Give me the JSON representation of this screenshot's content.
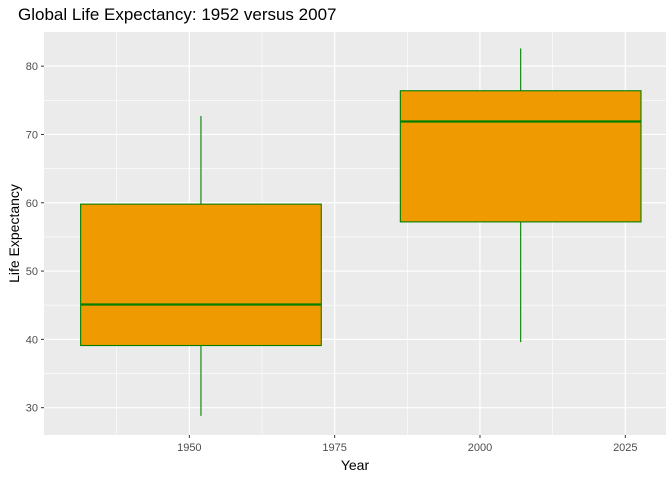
{
  "chart_data": {
    "type": "boxplot",
    "title": "Global Life Expectancy: 1952 versus 2007",
    "xlabel": "Year",
    "ylabel": "Life Expectancy",
    "xlim": [
      1925,
      2032
    ],
    "ylim": [
      26,
      85
    ],
    "x_ticks": [
      1950,
      1975,
      2000,
      2025
    ],
    "y_ticks": [
      30,
      40,
      50,
      60,
      70,
      80
    ],
    "grid": true,
    "colors": {
      "panel": "#ebebeb",
      "grid": "#ffffff",
      "box_fill": "#ef9a00",
      "box_stroke": "#008000",
      "tick_text": "#4d4d4d"
    },
    "boxes": [
      {
        "year": 1952,
        "x_from": 1931.3,
        "x_to": 1972.7,
        "min": 28.8,
        "q1": 39.1,
        "median": 45.1,
        "q3": 59.8,
        "max": 72.7
      },
      {
        "year": 2007,
        "x_from": 1986.3,
        "x_to": 2027.7,
        "min": 39.6,
        "q1": 57.2,
        "median": 71.9,
        "q3": 76.4,
        "max": 82.6
      }
    ]
  }
}
